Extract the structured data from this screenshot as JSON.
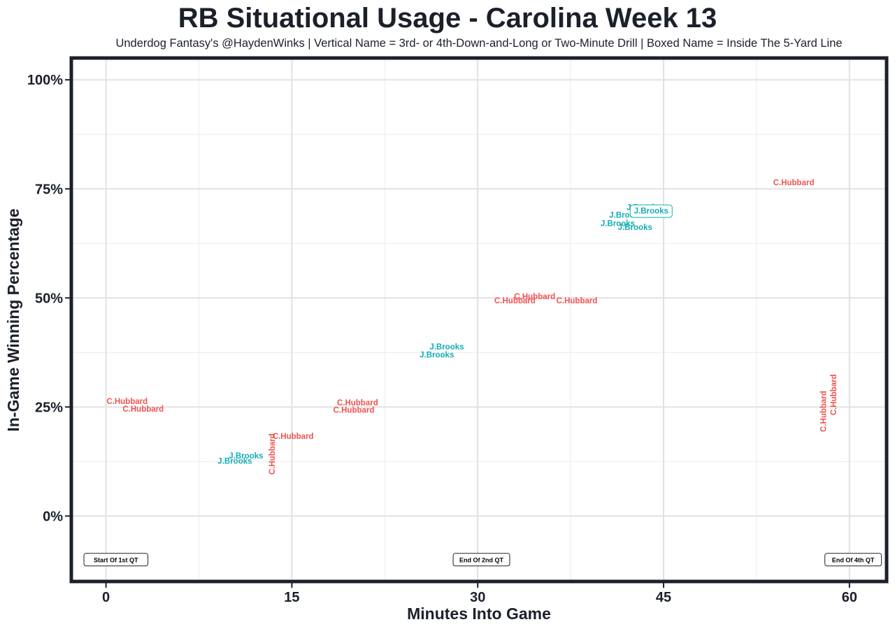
{
  "chart_data": {
    "type": "scatter",
    "title": "RB Situational Usage - Carolina Week 13",
    "subtitle": "Underdog Fantasy's @HaydenWinks | Vertical Name = 3rd- or 4th-Down-and-Long or Two-Minute Drill | Boxed Name = Inside The 5-Yard Line",
    "xlabel": "Minutes Into Game",
    "ylabel": "In-Game Winning Percentage",
    "xlim": [
      -2.8,
      63
    ],
    "ylim": [
      -15,
      105
    ],
    "x_ticks": [
      0,
      15,
      30,
      45,
      60
    ],
    "y_ticks": [
      0,
      25,
      50,
      75,
      100
    ],
    "y_tick_labels": [
      "0%",
      "25%",
      "50%",
      "75%",
      "100%"
    ],
    "x_minor_ticks": [
      7.5,
      22.5,
      37.5,
      52.5
    ],
    "y_minor_ticks": [
      12.5,
      37.5,
      62.5,
      87.5
    ],
    "grid": true,
    "legend": "none",
    "colors": {
      "C.Hubbard": "#ef5350",
      "J.Brooks": "#13adb5"
    },
    "markers": [
      {
        "x": 0.8,
        "y": -10,
        "label": "Start Of 1st QT"
      },
      {
        "x": 30.3,
        "y": -10,
        "label": "End Of 2nd QT"
      },
      {
        "x": 60.3,
        "y": -10,
        "label": "End Of 4th QT"
      }
    ],
    "points": [
      {
        "x": 1.7,
        "y": 26.3,
        "player": "C.Hubbard",
        "vertical": false,
        "boxed": false
      },
      {
        "x": 3.0,
        "y": 24.6,
        "player": "C.Hubbard",
        "vertical": false,
        "boxed": false
      },
      {
        "x": 11.3,
        "y": 13.8,
        "player": "J.Brooks",
        "vertical": false,
        "boxed": false
      },
      {
        "x": 10.4,
        "y": 12.6,
        "player": "J.Brooks",
        "vertical": false,
        "boxed": false
      },
      {
        "x": 13.4,
        "y": 14.2,
        "player": "C.Hubbard",
        "vertical": true,
        "boxed": false
      },
      {
        "x": 15.1,
        "y": 18.3,
        "player": "C.Hubbard",
        "vertical": false,
        "boxed": false
      },
      {
        "x": 20.3,
        "y": 26.0,
        "player": "C.Hubbard",
        "vertical": false,
        "boxed": false
      },
      {
        "x": 20.0,
        "y": 24.3,
        "player": "C.Hubbard",
        "vertical": false,
        "boxed": false
      },
      {
        "x": 27.5,
        "y": 38.8,
        "player": "J.Brooks",
        "vertical": false,
        "boxed": false
      },
      {
        "x": 26.7,
        "y": 37.0,
        "player": "J.Brooks",
        "vertical": false,
        "boxed": false
      },
      {
        "x": 33.0,
        "y": 49.4,
        "player": "C.Hubbard",
        "vertical": false,
        "boxed": false
      },
      {
        "x": 34.6,
        "y": 50.4,
        "player": "C.Hubbard",
        "vertical": false,
        "boxed": false
      },
      {
        "x": 38.0,
        "y": 49.4,
        "player": "C.Hubbard",
        "vertical": false,
        "boxed": false
      },
      {
        "x": 43.4,
        "y": 70.8,
        "player": "J.Brooks",
        "vertical": false,
        "boxed": false
      },
      {
        "x": 42.0,
        "y": 69.0,
        "player": "J.Brooks",
        "vertical": false,
        "boxed": false
      },
      {
        "x": 44.0,
        "y": 69.9,
        "player": "J.Brooks",
        "vertical": false,
        "boxed": true
      },
      {
        "x": 41.3,
        "y": 67.1,
        "player": "J.Brooks",
        "vertical": false,
        "boxed": false
      },
      {
        "x": 42.7,
        "y": 66.2,
        "player": "J.Brooks",
        "vertical": false,
        "boxed": false
      },
      {
        "x": 55.5,
        "y": 76.5,
        "player": "C.Hubbard",
        "vertical": false,
        "boxed": false
      },
      {
        "x": 57.9,
        "y": 24.0,
        "player": "C.Hubbard",
        "vertical": true,
        "boxed": false
      },
      {
        "x": 58.7,
        "y": 27.8,
        "player": "C.Hubbard",
        "vertical": true,
        "boxed": false
      }
    ]
  }
}
